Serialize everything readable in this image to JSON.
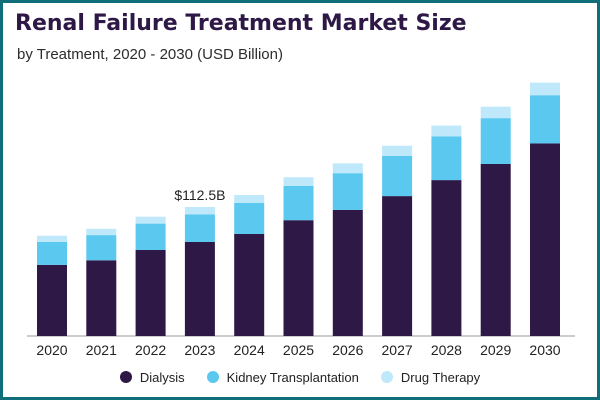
{
  "chart_data": {
    "type": "bar",
    "stacked": true,
    "title": "Renal Failure Treatment Market Size",
    "subtitle": "by Treatment, 2020 - 2030 (USD Billion)",
    "categories": [
      "2020",
      "2021",
      "2022",
      "2023",
      "2024",
      "2025",
      "2026",
      "2027",
      "2028",
      "2029",
      "2030"
    ],
    "series": [
      {
        "name": "Dialysis",
        "color": "#2d1846",
        "values": [
          62,
          66,
          75,
          82,
          89,
          101,
          110,
          122,
          136,
          150,
          168
        ]
      },
      {
        "name": "Kidney Transplantation",
        "color": "#5bc8f0",
        "values": [
          20,
          22,
          23,
          24,
          27,
          30,
          32,
          35,
          38,
          40,
          42
        ]
      },
      {
        "name": "Drug Therapy",
        "color": "#bfe9fa",
        "values": [
          5.5,
          5.5,
          6,
          6.5,
          7,
          7.5,
          8.5,
          9,
          9.5,
          10,
          11
        ]
      }
    ],
    "annotation": {
      "category": "2023",
      "text": "$112.5B"
    },
    "ylim": [
      0,
      225
    ],
    "grid": false,
    "legend": "bottom-center",
    "xlabel": "",
    "ylabel": ""
  }
}
